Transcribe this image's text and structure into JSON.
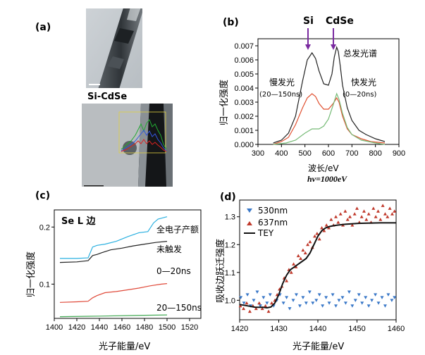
{
  "figure": {
    "panel_a": {
      "label": "(a)",
      "sample_label": "Si-CdSe"
    },
    "panel_b": {
      "label": "(b)"
    },
    "panel_c": {
      "label": "(c)"
    },
    "panel_d": {
      "label": "(d)"
    }
  },
  "chart_data": [
    {
      "id": "b",
      "type": "line",
      "title": "",
      "xlabel": "波长/eV",
      "subtitle_energy": "hν=1000eV",
      "ylabel": "归一化强度",
      "xlim": [
        300,
        900
      ],
      "ylim": [
        0,
        0.0075
      ],
      "xticks": [
        "300",
        "400",
        "500",
        "600",
        "700",
        "800",
        "900"
      ],
      "yticks": [
        "0.000",
        "0.001",
        "0.002",
        "0.003",
        "0.004",
        "0.005",
        "0.006",
        "0.007"
      ],
      "peak_labels": [
        "Si",
        "CdSe"
      ],
      "annotations": [
        "总发光谱",
        "慢发光",
        "(20—150ns)",
        "快发光",
        "(0—20ns)"
      ],
      "series": [
        {
          "name": "总发光谱",
          "color": "#222222",
          "x": [
            365,
            400,
            430,
            460,
            490,
            510,
            530,
            545,
            560,
            580,
            600,
            615,
            625,
            635,
            642,
            650,
            660,
            680,
            700,
            730,
            760,
            800,
            840
          ],
          "y": [
            0.0001,
            0.0003,
            0.0008,
            0.002,
            0.0045,
            0.006,
            0.0065,
            0.0061,
            0.0052,
            0.0043,
            0.0042,
            0.005,
            0.0062,
            0.0069,
            0.0066,
            0.0056,
            0.0042,
            0.0026,
            0.0017,
            0.001,
            0.0007,
            0.0004,
            0.0002
          ]
        },
        {
          "name": "慢发光",
          "color": "#e05030",
          "x": [
            365,
            400,
            430,
            460,
            490,
            510,
            530,
            545,
            560,
            580,
            600,
            620,
            635,
            645,
            660,
            680,
            700,
            740,
            780,
            840
          ],
          "y": [
            0.0,
            0.0002,
            0.0005,
            0.0014,
            0.0026,
            0.0033,
            0.0036,
            0.0034,
            0.0029,
            0.0025,
            0.0025,
            0.0029,
            0.0033,
            0.003,
            0.002,
            0.0011,
            0.0007,
            0.0004,
            0.0002,
            0.0001
          ]
        },
        {
          "name": "快发光",
          "color": "#77bb77",
          "x": [
            365,
            420,
            460,
            500,
            530,
            560,
            580,
            600,
            620,
            635,
            645,
            660,
            680,
            700,
            740,
            800,
            840
          ],
          "y": [
            0.0,
            0.0001,
            0.0003,
            0.0008,
            0.0011,
            0.0011,
            0.0013,
            0.0018,
            0.0028,
            0.0036,
            0.0032,
            0.0022,
            0.0012,
            0.0007,
            0.0003,
            0.0001,
            0.0
          ]
        }
      ]
    },
    {
      "id": "c",
      "type": "line",
      "title": "Se L 边",
      "xlabel": "光子能量/eV",
      "ylabel": "归一化强度",
      "xlim": [
        1400,
        1530
      ],
      "ylim": [
        0.04,
        0.23
      ],
      "xticks": [
        "1400",
        "1420",
        "1440",
        "1460",
        "1480",
        "1500",
        "1520"
      ],
      "yticks": [
        "0.1",
        "0.2"
      ],
      "series": [
        {
          "name": "全电子产额",
          "color": "#2ab0e0",
          "x": [
            1405,
            1420,
            1430,
            1434,
            1438,
            1445,
            1455,
            1465,
            1475,
            1483,
            1488,
            1492,
            1500
          ],
          "y": [
            0.145,
            0.145,
            0.146,
            0.165,
            0.168,
            0.17,
            0.175,
            0.183,
            0.19,
            0.192,
            0.207,
            0.214,
            0.218
          ]
        },
        {
          "name": "未触发",
          "color": "#222222",
          "x": [
            1405,
            1420,
            1430,
            1434,
            1438,
            1442,
            1450,
            1460,
            1470,
            1480,
            1490,
            1500
          ],
          "y": [
            0.138,
            0.139,
            0.141,
            0.15,
            0.152,
            0.155,
            0.16,
            0.163,
            0.167,
            0.17,
            0.173,
            0.175
          ]
        },
        {
          "name": "0—20ns",
          "color": "#e04a3a",
          "x": [
            1405,
            1420,
            1430,
            1434,
            1438,
            1445,
            1455,
            1465,
            1475,
            1485,
            1495,
            1500
          ],
          "y": [
            0.068,
            0.069,
            0.07,
            0.076,
            0.08,
            0.085,
            0.087,
            0.09,
            0.093,
            0.097,
            0.1,
            0.101
          ]
        },
        {
          "name": "20—150ns",
          "color": "#44aa55",
          "x": [
            1405,
            1440,
            1470,
            1500
          ],
          "y": [
            0.043,
            0.044,
            0.045,
            0.046
          ]
        }
      ]
    },
    {
      "id": "d",
      "type": "scatter",
      "title": "",
      "xlabel": "光子能量/eV",
      "ylabel": "吸收边跃迁强度",
      "xlim": [
        1420,
        1460
      ],
      "ylim": [
        0.93,
        1.36
      ],
      "xticks": [
        "1420",
        "1430",
        "1440",
        "1450",
        "1460"
      ],
      "yticks": [
        "1.0",
        "1.1",
        "1.2",
        "1.3"
      ],
      "legend": [
        "530nm",
        "637nm",
        "TEY"
      ],
      "series": [
        {
          "name": "530nm",
          "color": "#3a78c8",
          "marker": "triangle-down",
          "x": [
            1420.3,
            1421.1,
            1422.0,
            1422.8,
            1423.6,
            1424.5,
            1425.3,
            1426.1,
            1427.0,
            1427.8,
            1428.7,
            1429.5,
            1430.3,
            1431.2,
            1432.0,
            1432.8,
            1433.7,
            1434.5,
            1435.4,
            1436.2,
            1437.0,
            1437.9,
            1438.7,
            1439.6,
            1440.4,
            1441.2,
            1442.1,
            1442.9,
            1443.8,
            1444.6,
            1445.4,
            1446.3,
            1447.1,
            1448.0,
            1448.8,
            1449.6,
            1450.5,
            1451.3,
            1452.2,
            1453.0,
            1453.8,
            1454.7,
            1455.5,
            1456.4,
            1457.2,
            1458.0,
            1458.9,
            1459.6
          ],
          "y": [
            1.01,
            0.99,
            1.02,
            0.98,
            1.0,
            1.03,
            0.98,
            1.01,
            0.99,
            1.02,
            0.98,
            1.0,
            1.02,
            0.99,
            1.01,
            0.97,
            1.0,
            1.02,
            0.98,
            1.01,
            0.99,
            1.03,
            0.99,
            1.0,
            1.02,
            0.98,
            1.01,
            0.99,
            1.02,
            0.98,
            1.0,
            1.01,
            0.99,
            1.03,
            0.98,
            1.0,
            1.02,
            0.99,
            1.01,
            0.98,
            1.0,
            1.02,
            0.99,
            1.01,
            0.98,
            1.02,
            1.0,
            1.01
          ]
        },
        {
          "name": "637nm",
          "color": "#c0392b",
          "marker": "triangle-up",
          "x": [
            1420.2,
            1421.0,
            1421.8,
            1422.6,
            1423.4,
            1424.2,
            1425.0,
            1425.8,
            1426.6,
            1427.4,
            1428.2,
            1429.0,
            1429.6,
            1430.2,
            1430.8,
            1431.4,
            1432.0,
            1432.6,
            1433.2,
            1433.8,
            1434.4,
            1435.0,
            1435.6,
            1436.2,
            1436.8,
            1437.4,
            1438.0,
            1438.6,
            1439.2,
            1439.8,
            1440.4,
            1441.0,
            1441.6,
            1442.2,
            1442.8,
            1443.4,
            1444.0,
            1444.6,
            1445.2,
            1445.8,
            1446.4,
            1447.0,
            1447.6,
            1448.2,
            1448.8,
            1449.4,
            1450.0,
            1450.6,
            1451.2,
            1451.8,
            1452.4,
            1453.0,
            1453.6,
            1454.2,
            1454.8,
            1455.4,
            1456.0,
            1456.6,
            1457.2,
            1457.8,
            1458.4,
            1459.0,
            1459.6
          ],
          "y": [
            0.98,
            0.97,
            0.99,
            0.96,
            0.98,
            0.97,
            0.99,
            0.97,
            0.98,
            0.96,
            0.99,
            1.0,
            1.02,
            1.04,
            1.05,
            1.08,
            1.07,
            1.11,
            1.1,
            1.13,
            1.12,
            1.16,
            1.15,
            1.18,
            1.17,
            1.2,
            1.21,
            1.19,
            1.23,
            1.24,
            1.22,
            1.26,
            1.25,
            1.27,
            1.26,
            1.29,
            1.27,
            1.3,
            1.28,
            1.31,
            1.27,
            1.32,
            1.29,
            1.3,
            1.27,
            1.31,
            1.33,
            1.28,
            1.3,
            1.32,
            1.29,
            1.31,
            1.28,
            1.33,
            1.3,
            1.32,
            1.29,
            1.34,
            1.31,
            1.3,
            1.33,
            1.31,
            1.32
          ]
        },
        {
          "name": "TEY",
          "color": "#111111",
          "marker": "line",
          "x": [
            1420,
            1422,
            1424,
            1426,
            1427,
            1428,
            1429,
            1430,
            1431,
            1432,
            1433,
            1434,
            1435,
            1436,
            1437,
            1438,
            1439,
            1440,
            1441,
            1442,
            1443,
            1444,
            1445,
            1447,
            1450,
            1453,
            1456,
            1460
          ],
          "y": [
            0.985,
            0.98,
            0.975,
            0.975,
            0.973,
            0.976,
            0.99,
            1.02,
            1.06,
            1.09,
            1.11,
            1.12,
            1.13,
            1.14,
            1.15,
            1.17,
            1.2,
            1.23,
            1.25,
            1.26,
            1.265,
            1.268,
            1.27,
            1.273,
            1.276,
            1.277,
            1.278,
            1.278
          ]
        }
      ]
    }
  ]
}
